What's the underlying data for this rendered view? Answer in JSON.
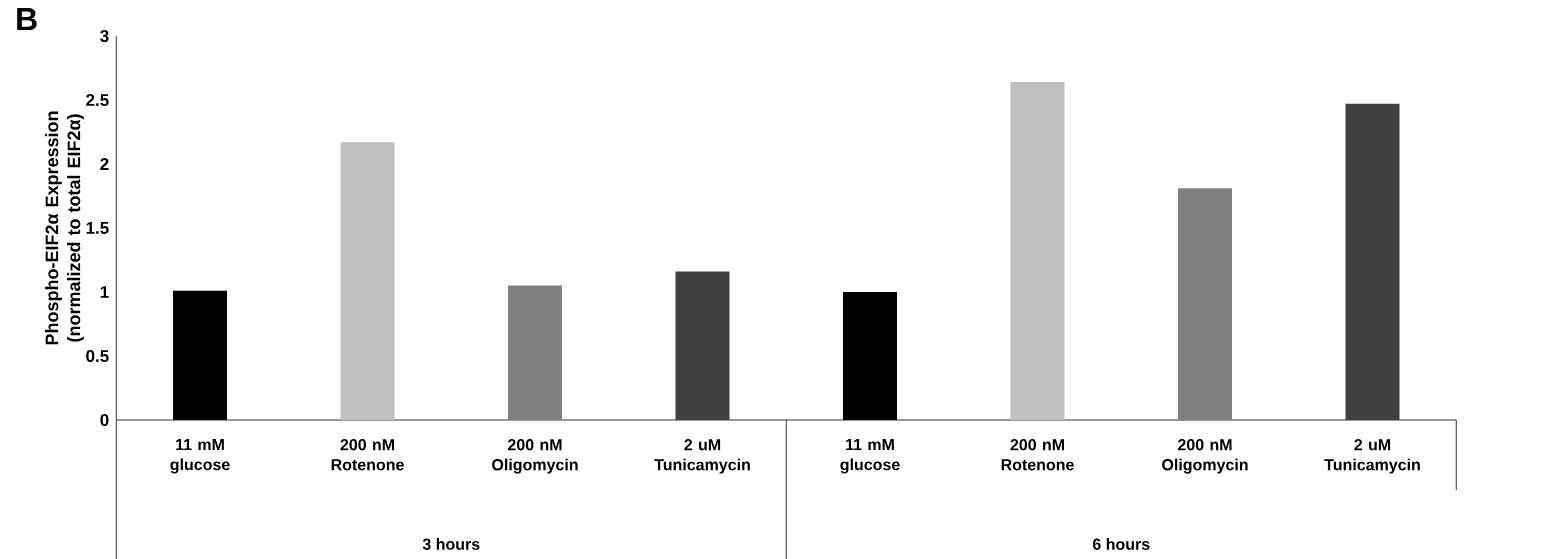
{
  "chart_data": {
    "type": "bar",
    "title": "B",
    "ylabel": "Phospho-EIF2α Expression (normalized to total EIF2α)",
    "categories": [
      "11 mM glucose",
      "200 nM Rotenone",
      "200 nM Oligomycin",
      "2 uM Tunicamycin",
      "11 mM glucose",
      "200 nM Rotenone",
      "200 nM Oligomycin",
      "2 uM Tunicamycin"
    ],
    "values": [
      1.01,
      2.17,
      1.05,
      1.16,
      1.0,
      2.64,
      1.81,
      2.47
    ],
    "colors": [
      "#000000",
      "#bfbfbf",
      "#808080",
      "#404040",
      "#000000",
      "#bfbfbf",
      "#808080",
      "#404040"
    ],
    "ylim": [
      0,
      3
    ],
    "yticks": [
      0,
      0.5,
      1,
      1.5,
      2,
      2.5,
      3
    ],
    "grid": false,
    "annotations": [
      "3 hours",
      "6 hours"
    ]
  }
}
